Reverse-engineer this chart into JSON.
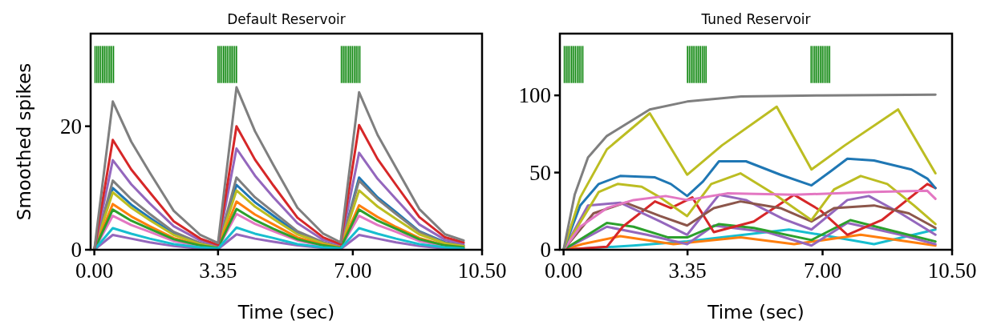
{
  "chart_data": [
    {
      "type": "line",
      "title": "Default Reservoir",
      "xlabel": "Time (sec)",
      "ylabel": "Smoothed spikes",
      "xlim": [
        -0.1,
        10.5
      ],
      "ylim": [
        0,
        35
      ],
      "xticks": [
        {
          "value": 0,
          "label": "0.00"
        },
        {
          "value": 3.35,
          "label": "3.35"
        },
        {
          "value": 7,
          "label": "7.00"
        },
        {
          "value": 10.5,
          "label": "10.50"
        }
      ],
      "yticks": [
        0,
        20
      ],
      "grid": false,
      "series": [
        {
          "type": "bar",
          "color": "#008000",
          "x": [
            0.02,
            0.07,
            0.12,
            0.17,
            0.22,
            0.27,
            0.32,
            0.37,
            0.42,
            0.47,
            0.52,
            3.35,
            3.4,
            3.45,
            3.5,
            3.55,
            3.6,
            3.65,
            3.7,
            3.75,
            3.8,
            3.85,
            6.69,
            6.74,
            6.79,
            6.84,
            6.89,
            6.94,
            6.99,
            7.04,
            7.09,
            7.14,
            7.19
          ],
          "base": [
            27,
            27,
            27,
            27,
            27,
            27,
            27,
            27,
            27,
            27,
            27,
            27,
            27,
            27,
            27,
            27,
            27,
            27,
            27,
            27,
            27,
            27,
            27,
            27,
            27,
            27,
            27,
            27,
            27,
            27,
            27,
            27,
            27
          ],
          "values": [
            6,
            6,
            6,
            6,
            6,
            6,
            6,
            6,
            6,
            6,
            6,
            6,
            6,
            6,
            6,
            6,
            6,
            6,
            6,
            6,
            6,
            6,
            6,
            6,
            6,
            6,
            6,
            6,
            6,
            6,
            6,
            6,
            6
          ]
        },
        {
          "color": "#1f77b4",
          "x": [
            0,
            0.5,
            1,
            1.5,
            2.15,
            2.87,
            3.35,
            3.85,
            4.35,
            4.85,
            5.5,
            6.2,
            6.67,
            7.17,
            7.67,
            8.17,
            8.8,
            9.5,
            10
          ],
          "values": [
            0,
            10,
            7.3,
            5.2,
            2.6,
            1,
            0.5,
            10.5,
            7.7,
            5.5,
            2.7,
            1,
            0.5,
            11.7,
            8.5,
            6.1,
            3,
            1.2,
            0.7
          ]
        },
        {
          "color": "#7f7f7f",
          "x": [
            0,
            0.5,
            1,
            1.5,
            2.15,
            2.87,
            3.35,
            3.85,
            4.35,
            4.85,
            5.5,
            6.2,
            6.67,
            7.17,
            7.67,
            8.17,
            8.8,
            9.5,
            10
          ],
          "values": [
            0,
            11.2,
            8.2,
            5.8,
            2.9,
            1.1,
            0.5,
            11.7,
            8.5,
            6.1,
            3,
            1.2,
            0.5,
            11.2,
            8.2,
            5.8,
            2.9,
            1.1,
            0.7
          ]
        },
        {
          "color": "#bcbd22",
          "x": [
            0,
            0.5,
            1,
            1.5,
            2.15,
            2.87,
            3.35,
            3.85,
            4.35,
            4.85,
            5.5,
            6.2,
            6.67,
            7.17,
            7.67,
            8.17,
            8.8,
            9.5,
            10
          ],
          "values": [
            0,
            9.3,
            6.8,
            4.8,
            2.4,
            0.9,
            0.4,
            9.6,
            7,
            5,
            2.5,
            1,
            0.4,
            9.6,
            7,
            5,
            2.5,
            1,
            0.6
          ]
        },
        {
          "color": "#ff7f0e",
          "x": [
            0,
            0.5,
            1,
            1.5,
            2.15,
            2.87,
            3.35,
            3.85,
            4.35,
            4.85,
            5.5,
            6.2,
            6.67,
            7.17,
            7.67,
            8.17,
            8.8,
            9.5,
            10
          ],
          "values": [
            0,
            7.4,
            5.4,
            3.8,
            1.9,
            0.7,
            0.3,
            7.8,
            5.7,
            4.1,
            2,
            0.8,
            0.4,
            7.2,
            5.3,
            3.7,
            1.9,
            0.7,
            0.4
          ]
        },
        {
          "color": "#e377c2",
          "x": [
            0,
            0.5,
            1,
            1.5,
            2.15,
            2.87,
            3.35,
            3.85,
            4.35,
            4.85,
            5.5,
            6.2,
            6.67,
            7.17,
            7.67,
            8.17,
            8.8,
            9.5,
            10
          ],
          "values": [
            0,
            5.5,
            4,
            2.9,
            1.4,
            0.6,
            0.3,
            5.8,
            4.2,
            3,
            1.5,
            0.6,
            0.3,
            5.5,
            4,
            2.9,
            1.4,
            0.6,
            0.3
          ]
        },
        {
          "color": "#2ca02c",
          "x": [
            0,
            0.5,
            1,
            1.5,
            2.15,
            2.87,
            3.35,
            3.85,
            4.35,
            4.85,
            5.5,
            6.2,
            6.67,
            7.17,
            7.67,
            8.17,
            8.8,
            9.5,
            10
          ],
          "values": [
            0,
            6.5,
            4.7,
            3.4,
            1.7,
            0.7,
            0.3,
            6.6,
            4.8,
            3.4,
            1.7,
            0.7,
            0.3,
            6.5,
            4.7,
            3.4,
            1.7,
            0.7,
            0.4
          ]
        },
        {
          "color": "#9467bd",
          "x": [
            0,
            0.5,
            1,
            1.5,
            2.15,
            2.87,
            3.35,
            3.85,
            4.35,
            4.85,
            5.5,
            6.2,
            6.67,
            7.17,
            7.67,
            8.17,
            8.8,
            9.5,
            10
          ],
          "values": [
            0,
            2.4,
            1.8,
            1.2,
            0.6,
            0.2,
            0.1,
            2.5,
            1.8,
            1.3,
            0.7,
            0.3,
            0.1,
            2.4,
            1.8,
            1.2,
            0.6,
            0.2,
            0.1
          ]
        },
        {
          "color": "#17becf",
          "x": [
            0,
            0.5,
            1,
            1.5,
            2.15,
            2.87,
            3.35,
            3.85,
            4.35,
            4.85,
            5.5,
            6.2,
            6.67,
            7.17,
            7.67,
            8.17,
            8.8,
            9.5,
            10
          ],
          "values": [
            0,
            3.5,
            2.6,
            1.8,
            0.9,
            0.4,
            0.2,
            3.6,
            2.6,
            1.9,
            0.9,
            0.4,
            0.2,
            3.5,
            2.6,
            1.8,
            0.9,
            0.4,
            0.2
          ]
        },
        {
          "color": "#9467bd",
          "x": [
            0,
            0.5,
            1,
            1.5,
            2.15,
            2.87,
            3.35,
            3.85,
            4.35,
            4.85,
            5.5,
            6.2,
            6.67,
            7.17,
            7.67,
            8.17,
            8.8,
            9.5,
            10
          ],
          "values": [
            0,
            14.5,
            10.6,
            7.5,
            3.8,
            1.5,
            0.7,
            16.4,
            12,
            8.5,
            4.3,
            1.6,
            0.8,
            15.7,
            11.5,
            8.2,
            4.1,
            1.6,
            1
          ]
        },
        {
          "color": "#d62728",
          "x": [
            0,
            0.5,
            1,
            1.5,
            2.15,
            2.87,
            3.35,
            3.85,
            4.35,
            4.85,
            5.5,
            6.2,
            6.67,
            7.17,
            7.67,
            8.17,
            8.8,
            9.5,
            10
          ],
          "values": [
            0,
            17.8,
            13,
            9.3,
            4.6,
            1.8,
            0.8,
            20,
            14.6,
            10.4,
            5.2,
            2,
            0.9,
            20.2,
            14.7,
            10.5,
            5.3,
            2,
            1.2
          ]
        },
        {
          "color": "#7f7f7f",
          "x": [
            0,
            0.5,
            1,
            1.5,
            2.15,
            2.87,
            3.35,
            3.85,
            4.35,
            4.85,
            5.5,
            6.2,
            6.67,
            7.17,
            7.67,
            8.17,
            8.8,
            9.5,
            10
          ],
          "values": [
            0,
            24,
            17.5,
            12.5,
            6.3,
            2.4,
            1.1,
            26.3,
            19.2,
            13.7,
            6.8,
            2.6,
            1.2,
            25.5,
            18.6,
            13.3,
            6.6,
            2.5,
            1.5
          ]
        }
      ]
    },
    {
      "type": "line",
      "title": "Tuned Reservoir",
      "xlabel": "Time (sec)",
      "xlim": [
        -0.1,
        10.5
      ],
      "ylim": [
        0,
        140
      ],
      "xticks": [
        {
          "value": 0,
          "label": "0.00"
        },
        {
          "value": 3.35,
          "label": "3.35"
        },
        {
          "value": 7,
          "label": "7.00"
        },
        {
          "value": 10.5,
          "label": "10.50"
        }
      ],
      "yticks": [
        0,
        50,
        100
      ],
      "grid": false,
      "series": [
        {
          "type": "bar",
          "color": "#008000",
          "x": [
            0.02,
            0.07,
            0.12,
            0.17,
            0.22,
            0.27,
            0.32,
            0.37,
            0.42,
            0.47,
            0.52,
            3.35,
            3.4,
            3.45,
            3.5,
            3.55,
            3.6,
            3.65,
            3.7,
            3.75,
            3.8,
            3.85,
            6.69,
            6.74,
            6.79,
            6.84,
            6.89,
            6.94,
            6.99,
            7.04,
            7.09,
            7.14,
            7.19
          ],
          "base": [
            108,
            108,
            108,
            108,
            108,
            108,
            108,
            108,
            108,
            108,
            108,
            108,
            108,
            108,
            108,
            108,
            108,
            108,
            108,
            108,
            108,
            108,
            108,
            108,
            108,
            108,
            108,
            108,
            108,
            108,
            108,
            108,
            108
          ],
          "values": [
            24,
            24,
            24,
            24,
            24,
            24,
            24,
            24,
            24,
            24,
            24,
            24,
            24,
            24,
            24,
            24,
            24,
            24,
            24,
            24,
            24,
            24,
            24,
            24,
            24,
            24,
            24,
            24,
            24,
            24,
            24,
            24,
            24
          ]
        },
        {
          "color": "#17becf",
          "x": [
            0,
            1.89,
            3.34,
            6.09,
            6.95,
            8.39,
            10.05
          ],
          "values": [
            0,
            2.7,
            5.4,
            13.1,
            9.7,
            3.6,
            13.1
          ]
        },
        {
          "color": "#ff7f0e",
          "x": [
            0,
            0.5,
            1.53,
            2.97,
            4.78,
            6.23,
            8.03,
            10.05
          ],
          "values": [
            0,
            3.6,
            8.8,
            3.6,
            8,
            3.6,
            9.7,
            2.7
          ]
        },
        {
          "color": "#9467bd",
          "x": [
            0,
            1.17,
            2.25,
            3.34,
            4.06,
            5.5,
            6.7,
            7.67,
            9.11,
            10.05
          ],
          "values": [
            0,
            14.9,
            9.7,
            3.6,
            15.7,
            11.4,
            2.7,
            17.4,
            9.7,
            3.6
          ]
        },
        {
          "color": "#2ca02c",
          "x": [
            0,
            1.17,
            1.89,
            2.83,
            3.34,
            4.2,
            5.14,
            6.7,
            7.75,
            8.75,
            10.05
          ],
          "values": [
            0,
            17.4,
            14.9,
            8,
            8,
            16.6,
            14.1,
            6.3,
            19.2,
            13.1,
            5.4
          ]
        },
        {
          "color": "#d62728",
          "x": [
            0,
            1.17,
            1.6,
            2.47,
            2.9,
            3.48,
            4.06,
            5.14,
            6.23,
            6.95,
            7.67,
            8.6,
            9.83,
            10.05
          ],
          "values": [
            0,
            1.9,
            14.9,
            31.3,
            27,
            33.9,
            11.4,
            18.3,
            35.6,
            25.3,
            9.7,
            19.2,
            42.6,
            40
          ]
        },
        {
          "color": "#9467bd",
          "x": [
            0,
            0.66,
            1.53,
            2.61,
            3.34,
            4.2,
            4.93,
            5.93,
            6.7,
            7.67,
            8.25,
            9.11,
            10.05
          ],
          "values": [
            0,
            28.7,
            30.5,
            18.3,
            9.7,
            35.6,
            32.2,
            20,
            13.1,
            32.2,
            34.8,
            23.6,
            9.7
          ]
        },
        {
          "color": "#8c564b",
          "x": [
            0,
            0.81,
            1.67,
            2.61,
            3.34,
            4.06,
            4.78,
            5.86,
            6.7,
            7.31,
            8.39,
            9.33,
            10.05
          ],
          "values": [
            0,
            23.6,
            30.5,
            21.8,
            15.7,
            27,
            31.3,
            27,
            18.3,
            27,
            28.7,
            23.6,
            14.1
          ]
        },
        {
          "color": "#bcbd22",
          "x": [
            0,
            0.95,
            1.46,
            2.11,
            2.61,
            3.34,
            3.99,
            4.78,
            5.72,
            6.7,
            7.31,
            8.03,
            8.75,
            9.47,
            10.05
          ],
          "values": [
            0,
            37.4,
            42.6,
            40.8,
            33.9,
            21.8,
            42.6,
            49.5,
            35.6,
            19.2,
            39.1,
            47.8,
            42.6,
            28.7,
            16.6
          ]
        },
        {
          "color": "#e377c2",
          "x": [
            0,
            0.45,
            1.17,
            1.89,
            2.76,
            3.34,
            4.42,
            6.23,
            8.39,
            9.83,
            10.05
          ],
          "values": [
            0,
            14.9,
            27,
            32.2,
            34.8,
            32.2,
            36.5,
            35.6,
            37.4,
            38.2,
            33
          ]
        },
        {
          "color": "#1f77b4",
          "x": [
            0,
            0.45,
            0.95,
            1.53,
            2.47,
            2.9,
            3.34,
            3.77,
            4.2,
            4.93,
            5.86,
            6.7,
            7.24,
            7.67,
            8.39,
            9.4,
            9.83,
            10.05
          ],
          "values": [
            0,
            28.7,
            42.6,
            47.8,
            46.9,
            42.6,
            34.8,
            44.3,
            57.3,
            57.3,
            48.6,
            41.7,
            51.2,
            59,
            57.8,
            52,
            46.1,
            40
          ]
        },
        {
          "color": "#bcbd22",
          "x": [
            0,
            0.45,
            1.17,
            2.33,
            3.34,
            4.28,
            5.76,
            6.7,
            7.6,
            9.04,
            10.05
          ],
          "values": [
            0,
            33.9,
            65,
            88.4,
            48.6,
            67.6,
            92.7,
            52,
            67.6,
            90.9,
            49.5
          ]
        },
        {
          "color": "#7f7f7f",
          "x": [
            0,
            0.3,
            0.66,
            1.17,
            2.33,
            3.34,
            4.8,
            7,
            10.05
          ],
          "values": [
            0,
            35.6,
            59.8,
            73.7,
            90.9,
            96,
            99.3,
            100,
            100.5
          ]
        }
      ]
    }
  ]
}
